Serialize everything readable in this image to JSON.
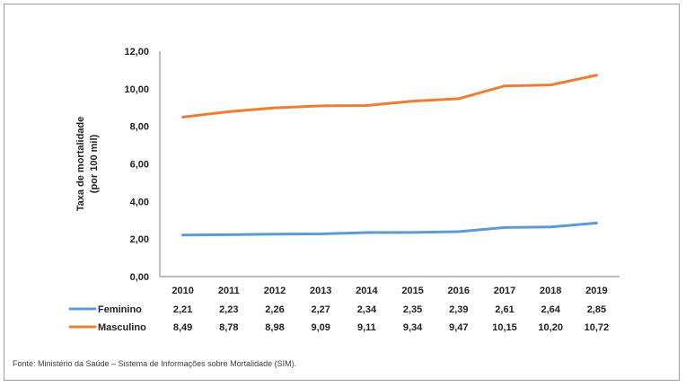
{
  "footer": {
    "source_text": "Fonte: Ministério da Saúde – Sistema de Informações sobre Mortalidade (SIM)."
  },
  "colors": {
    "axis": "#a6a6a6",
    "text": "#212121",
    "border": "#9c9c9c",
    "feminino": "#5B9BD5",
    "masculino": "#ED7D31"
  },
  "chart_data": {
    "type": "line",
    "title": "",
    "xlabel": "",
    "ylabel": "Taxa de mortalidade (por 100 mil)",
    "ylabel_lines": [
      "Taxa de mortalidade",
      "(por 100 mil)"
    ],
    "categories": [
      "2010",
      "2011",
      "2012",
      "2013",
      "2014",
      "2015",
      "2016",
      "2017",
      "2018",
      "2019"
    ],
    "ylim": [
      0,
      12
    ],
    "ytick_labels": [
      "0,00",
      "2,00",
      "4,00",
      "6,00",
      "8,00",
      "10,00",
      "12,00"
    ],
    "ytick_values": [
      0,
      2,
      4,
      6,
      8,
      10,
      12
    ],
    "grid": false,
    "legend_position": "bottom-left-table",
    "series": [
      {
        "name": "Feminino",
        "color": "#5B9BD5",
        "values": [
          2.21,
          2.23,
          2.26,
          2.27,
          2.34,
          2.35,
          2.39,
          2.61,
          2.64,
          2.85
        ],
        "labels": [
          "2,21",
          "2,23",
          "2,26",
          "2,27",
          "2,34",
          "2,35",
          "2,39",
          "2,61",
          "2,64",
          "2,85"
        ]
      },
      {
        "name": "Masculino",
        "color": "#ED7D31",
        "values": [
          8.49,
          8.78,
          8.98,
          9.09,
          9.11,
          9.34,
          9.47,
          10.15,
          10.2,
          10.72
        ],
        "labels": [
          "8,49",
          "8,78",
          "8,98",
          "9,09",
          "9,11",
          "9,34",
          "9,47",
          "10,15",
          "10,20",
          "10,72"
        ]
      }
    ]
  }
}
